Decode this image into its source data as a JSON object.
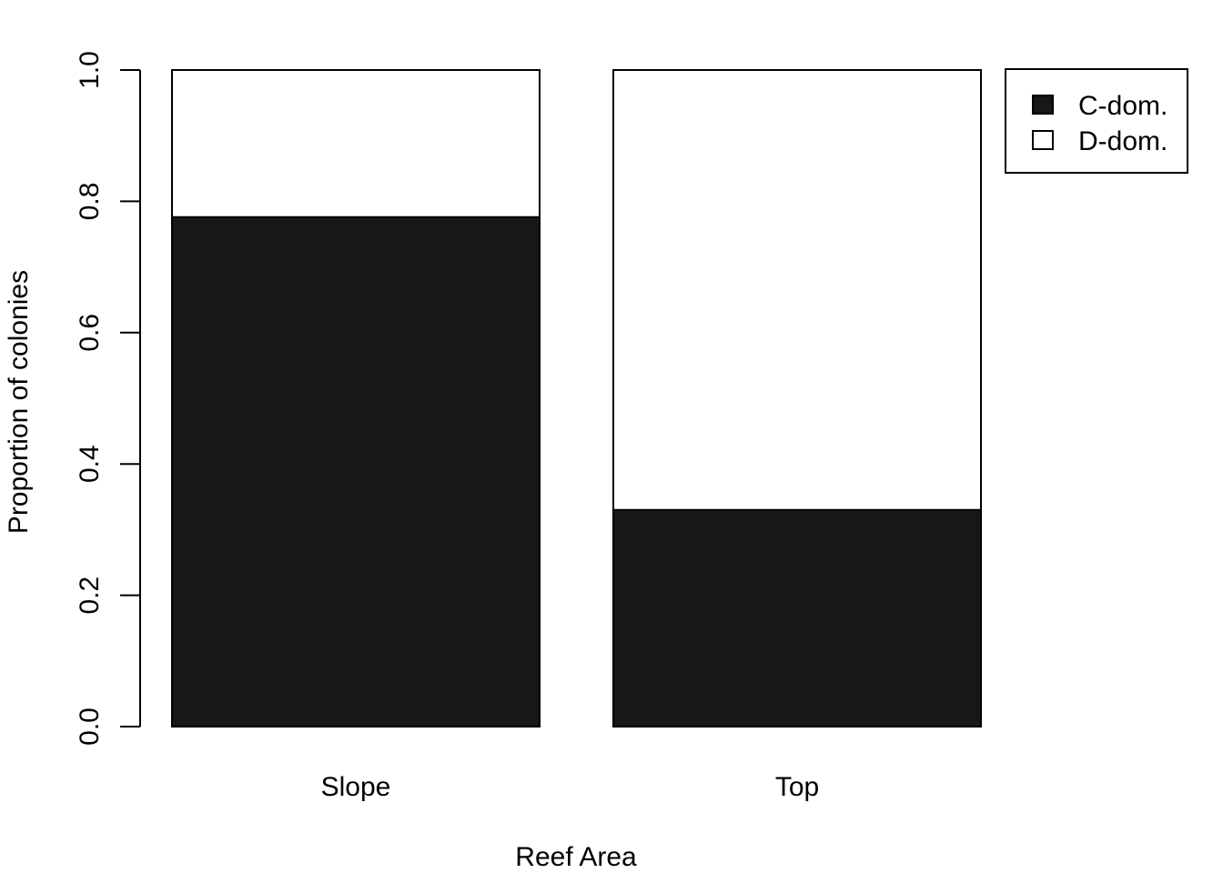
{
  "chart_data": {
    "type": "bar",
    "stacked": true,
    "categories": [
      "Slope",
      "Top"
    ],
    "series": [
      {
        "name": "C-dom.",
        "values": [
          0.776,
          0.33
        ],
        "color": "#171717"
      },
      {
        "name": "D-dom.",
        "values": [
          0.224,
          0.67
        ],
        "color": "#ffffff"
      }
    ],
    "xlabel": "Reef Area",
    "ylabel": "Proportion of colonies",
    "ylim": [
      0,
      1
    ],
    "yticks": [
      0,
      0.2,
      0.4,
      0.6,
      0.8,
      1
    ],
    "ytick_labels": [
      "0.0",
      "0.2",
      "0.4",
      "0.6",
      "0.8",
      "1.0"
    ],
    "legend_position": "top-right",
    "grid": false
  }
}
